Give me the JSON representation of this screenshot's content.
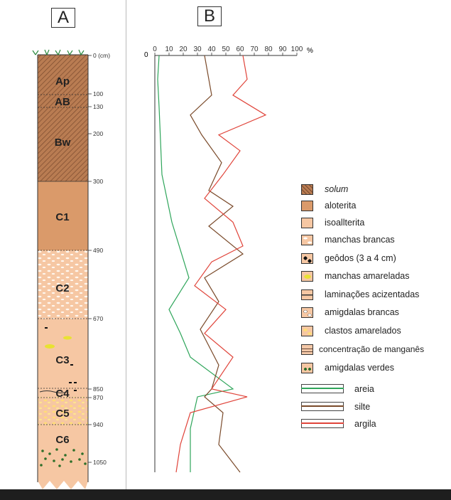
{
  "panels": {
    "a": "A",
    "b": "B"
  },
  "profile": {
    "depth_unit_label": "0 (cm)",
    "depth_ticks": [
      "100",
      "130",
      "200",
      "300",
      "490",
      "670",
      "850",
      "870",
      "940",
      "1050"
    ],
    "horizons": [
      "Ap",
      "AB",
      "Bw",
      "C1",
      "C2",
      "C3",
      "C4",
      "C5",
      "C6"
    ]
  },
  "colors": {
    "solum": "#b97c52",
    "aloterita": "#da9a6a",
    "isoalterita": "#f6c7a3",
    "areia": "#2ea55a",
    "silte": "#7a4a2a",
    "argila": "#e0443a"
  },
  "chart_data": {
    "type": "line",
    "x_axis": {
      "ticks": [
        "0",
        "10",
        "20",
        "30",
        "40",
        "50",
        "60",
        "70",
        "80",
        "90",
        "100"
      ],
      "unit": "%",
      "range": [
        0,
        100
      ]
    },
    "y_origin_label": "0",
    "series": [
      {
        "name": "areia",
        "depth": [
          0,
          60,
          130,
          300,
          420,
          560,
          640,
          700,
          760,
          840,
          860,
          940,
          1050
        ],
        "values": [
          3,
          2,
          3,
          5,
          12,
          24,
          10,
          18,
          25,
          55,
          30,
          25,
          25
        ]
      },
      {
        "name": "silte",
        "depth": [
          0,
          60,
          100,
          150,
          200,
          270,
          340,
          380,
          430,
          500,
          560,
          620,
          690,
          780,
          840,
          860,
          900,
          980,
          1050
        ],
        "values": [
          35,
          38,
          40,
          25,
          33,
          47,
          38,
          55,
          38,
          62,
          35,
          45,
          32,
          45,
          40,
          35,
          48,
          45,
          60
        ]
      },
      {
        "name": "argila",
        "depth": [
          0,
          60,
          100,
          150,
          200,
          240,
          300,
          360,
          420,
          480,
          520,
          580,
          640,
          700,
          760,
          840,
          860,
          900,
          980,
          1050
        ],
        "values": [
          62,
          65,
          55,
          78,
          45,
          60,
          48,
          35,
          55,
          62,
          40,
          28,
          50,
          35,
          55,
          40,
          65,
          25,
          18,
          15
        ]
      }
    ]
  },
  "legend": [
    {
      "label": "solum",
      "swatch": "solum"
    },
    {
      "label": "aloterita",
      "swatch": "aloterita"
    },
    {
      "label": "isoallterita",
      "swatch": "isoalterita"
    },
    {
      "label": "manchas brancas",
      "swatch": "manchas-brancas"
    },
    {
      "label": "geôdos (3 a 4 cm)",
      "swatch": "geodos"
    },
    {
      "label": "manchas amareladas",
      "swatch": "manchas-amareladas"
    },
    {
      "label": "laminações acizentadas",
      "swatch": "laminacoes"
    },
    {
      "label": "amigdalas brancas",
      "swatch": "amigdalas-brancas"
    },
    {
      "label": "clastos amarelados",
      "swatch": "clastos"
    },
    {
      "label": "concentração de manganês",
      "swatch": "manganes"
    },
    {
      "label": "amigdalas verdes",
      "swatch": "amigdalas-verdes"
    },
    {
      "label": "areia",
      "swatch": "areia"
    },
    {
      "label": "silte",
      "swatch": "silte"
    },
    {
      "label": "argila",
      "swatch": "argila"
    }
  ]
}
